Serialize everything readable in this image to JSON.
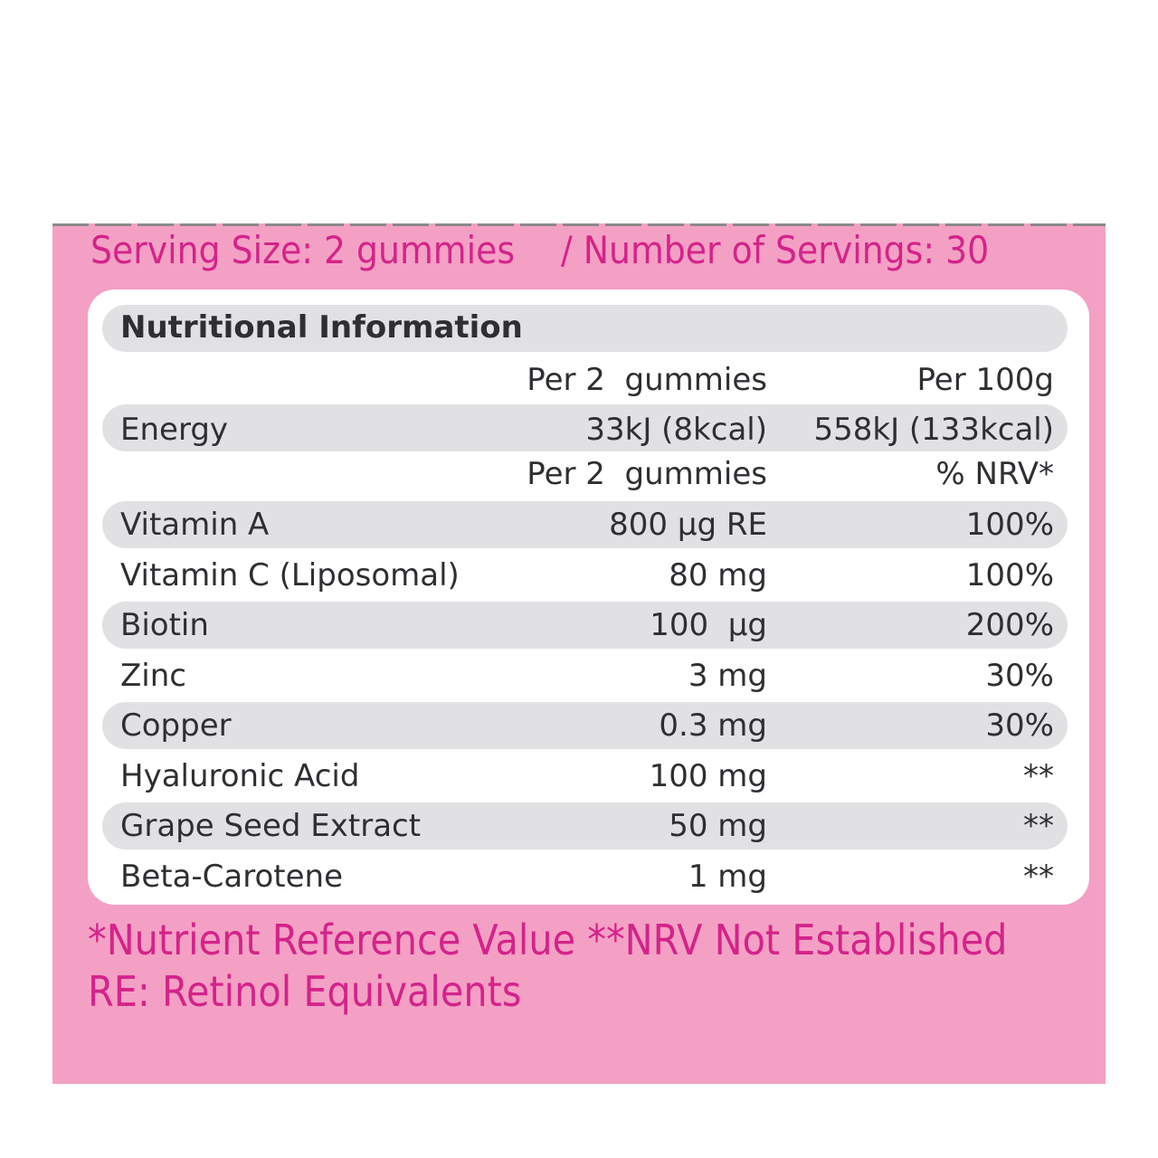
{
  "serving": {
    "size": "Serving Size: 2 gummies",
    "count": "/ Number of Servings: 30"
  },
  "table": {
    "title": "Nutritional Information",
    "energy_header": [
      "Per 2  gummies",
      "Per 100g"
    ],
    "energy": [
      "Energy",
      "33kJ (8kcal)",
      "558kJ (133kcal)"
    ],
    "nutrient_header": [
      "Per 2  gummies",
      "% NRV*"
    ],
    "rows": [
      [
        "Vitamin A",
        "800 µg RE",
        "100%"
      ],
      [
        "Vitamin C (Liposomal)",
        "80 mg",
        "100%"
      ],
      [
        "Biotin",
        "100  µg",
        "200%"
      ],
      [
        "Zinc",
        "3 mg",
        "30%"
      ],
      [
        "Copper",
        "0.3 mg",
        "30%"
      ],
      [
        "Hyaluronic Acid",
        "100 mg",
        "**"
      ],
      [
        "Grape Seed Extract",
        "50 mg",
        "**"
      ],
      [
        "Beta-Carotene",
        "1 mg",
        "**"
      ]
    ]
  },
  "footnotes": [
    "*Nutrient Reference Value **NRV Not Established",
    "RE: Retinol Equivalents"
  ]
}
